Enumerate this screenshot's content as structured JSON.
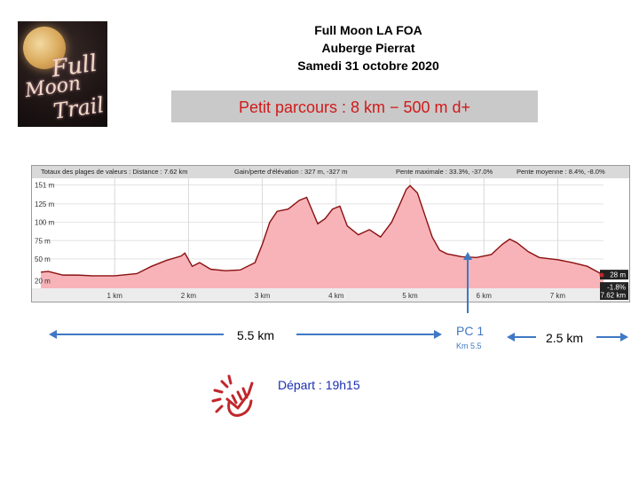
{
  "logo": {
    "words": [
      "Full",
      "Moon",
      "Trail"
    ]
  },
  "header": {
    "line1": "Full Moon LA FOA",
    "line2": "Auberge Pierrat",
    "line3": "Samedi 31 octobre 2020"
  },
  "banner": {
    "text": "Petit parcours : 8 km − 500 m d+"
  },
  "stats": {
    "totals": "Totaux des plages de valeurs : Distance : 7.62 km",
    "gain": "Gain/perte d'élévation : 327 m, -327 m",
    "pente_max": "Pente maximale : 33.3%, -37.0%",
    "pente_moy": "Pente moyenne : 8.4%, -8.0%"
  },
  "chart_data": {
    "type": "area",
    "xlabel": "",
    "ylabel": "",
    "x_ticks": [
      "1 km",
      "2 km",
      "3 km",
      "4 km",
      "5 km",
      "6 km",
      "7 km"
    ],
    "y_ticks": [
      "151 m",
      "125 m",
      "100 m",
      "75 m",
      "50 m",
      "20 m"
    ],
    "xlim": [
      0,
      7.62
    ],
    "ylim": [
      10,
      160
    ],
    "x": [
      0,
      0.1,
      0.3,
      0.5,
      0.7,
      1.0,
      1.3,
      1.5,
      1.7,
      1.9,
      1.95,
      2.05,
      2.15,
      2.3,
      2.5,
      2.7,
      2.9,
      3.0,
      3.1,
      3.2,
      3.35,
      3.5,
      3.6,
      3.65,
      3.75,
      3.85,
      3.95,
      4.05,
      4.15,
      4.3,
      4.45,
      4.6,
      4.75,
      4.85,
      4.95,
      5.0,
      5.1,
      5.2,
      5.3,
      5.4,
      5.5,
      5.7,
      5.9,
      6.1,
      6.25,
      6.35,
      6.45,
      6.6,
      6.75,
      7.0,
      7.2,
      7.4,
      7.62
    ],
    "y": [
      32,
      33,
      28,
      28,
      27,
      27,
      30,
      40,
      48,
      54,
      58,
      40,
      45,
      36,
      34,
      35,
      45,
      70,
      100,
      115,
      118,
      130,
      134,
      122,
      98,
      105,
      118,
      122,
      95,
      83,
      90,
      80,
      100,
      122,
      145,
      150,
      140,
      110,
      80,
      62,
      57,
      53,
      52,
      56,
      70,
      77,
      72,
      60,
      52,
      49,
      45,
      40,
      28
    ],
    "annotations": [
      "28 m",
      "-1.8%",
      "7.62 km"
    ]
  },
  "route": {
    "seg1_label": "5.5 km",
    "seg2_label": "2.5 km",
    "pc_label": "PC 1",
    "pc_km": "Km 5.5"
  },
  "depart": {
    "text": "Départ : 19h15"
  },
  "colors": {
    "accent_blue": "#3f78c4",
    "profile_fill": "#f7b3b8",
    "profile_line": "#8a1010",
    "banner_text": "#d11a1a"
  }
}
